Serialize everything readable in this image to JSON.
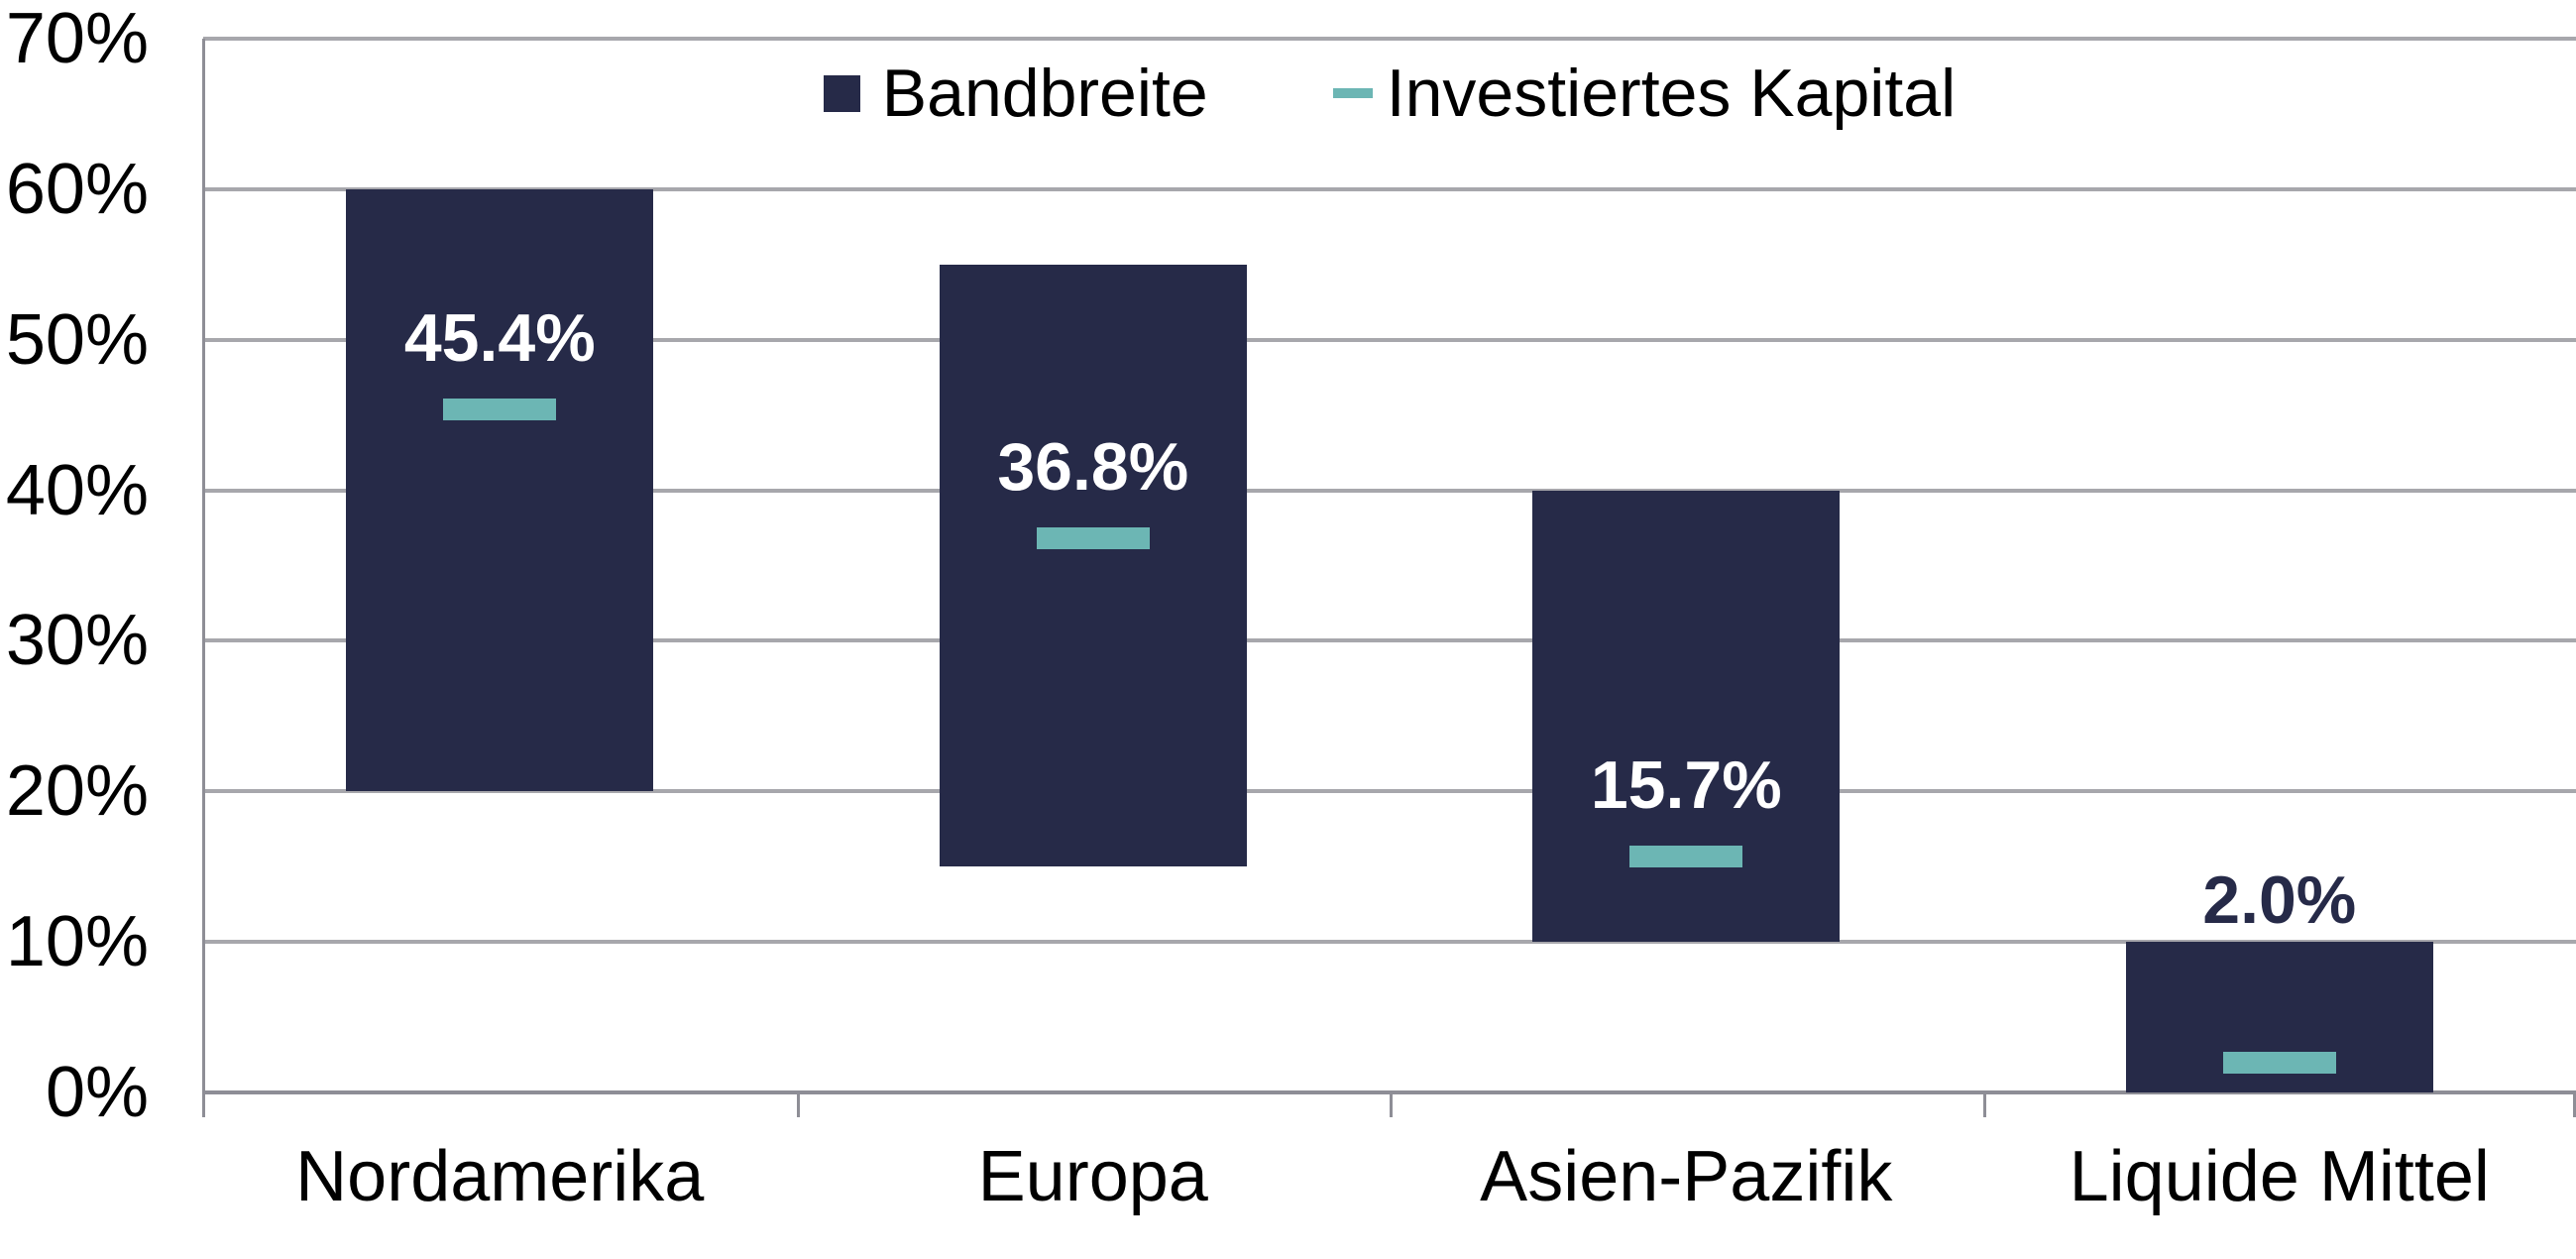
{
  "colors": {
    "bar": "#262A48",
    "marker": "#6CB6B4",
    "gridline": "#A7A7AC",
    "axis": "#8E8E96",
    "value_label_inside": "#FFFFFF",
    "value_label_outside": "#262A48",
    "tick_text": "#000000"
  },
  "legend": {
    "items": [
      {
        "label": "Bandbreite",
        "swatch": "square",
        "color": "#262A48"
      },
      {
        "label": "Investiertes Kapital",
        "swatch": "dash",
        "color": "#6CB6B4"
      }
    ]
  },
  "chart_data": {
    "type": "bar",
    "subtype": "floating-range-bars-with-value-markers",
    "categories": [
      "Nordamerika",
      "Europa",
      "Asien-Pazifik",
      "Liquide Mittel"
    ],
    "series": [
      {
        "name": "Bandbreite",
        "render": "range-bar",
        "ranges_pct": [
          [
            20,
            60
          ],
          [
            15,
            55
          ],
          [
            10,
            40
          ],
          [
            0,
            10
          ]
        ]
      },
      {
        "name": "Investiertes Kapital",
        "render": "marker",
        "values_pct": [
          45.4,
          36.8,
          15.7,
          2.0
        ],
        "value_labels": [
          "45.4%",
          "36.8%",
          "15.7%",
          "2.0%"
        ]
      }
    ],
    "ylim": [
      0,
      70
    ],
    "ytick_step": 10,
    "ytick_labels": [
      "0%",
      "10%",
      "20%",
      "30%",
      "40%",
      "50%",
      "60%",
      "70%"
    ],
    "grid": true,
    "legend_position": "top-center"
  }
}
